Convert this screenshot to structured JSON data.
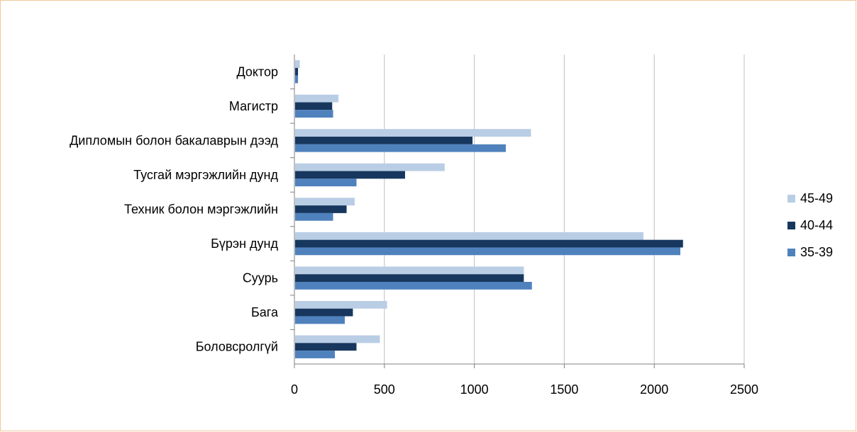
{
  "chart_data": {
    "type": "bar",
    "orientation": "horizontal",
    "categories": [
      "Доктор",
      "Магистр",
      "Дипломын болон бакалаврын дээд",
      "Тусгай мэргэжлийн дунд",
      "Техник болон мэргэжлийн",
      "Бүрэн дунд",
      "Суурь",
      "Бага",
      "Боловсролгүй"
    ],
    "series": [
      {
        "name": "45-49",
        "color": "#b9cde5",
        "values": [
          30,
          245,
          1315,
          835,
          335,
          1940,
          1275,
          515,
          475
        ]
      },
      {
        "name": "40-44",
        "color": "#17375e",
        "values": [
          20,
          210,
          990,
          615,
          290,
          2160,
          1275,
          325,
          345
        ]
      },
      {
        "name": "35-39",
        "color": "#4f81bd",
        "values": [
          20,
          215,
          1175,
          345,
          215,
          2145,
          1320,
          280,
          225
        ]
      }
    ],
    "xticks": [
      "0",
      "500",
      "1000",
      "1500",
      "2000",
      "2500"
    ],
    "xlim": [
      0,
      2500
    ],
    "grid": true,
    "legend_position": "right",
    "title": "",
    "xlabel": "",
    "ylabel": ""
  }
}
